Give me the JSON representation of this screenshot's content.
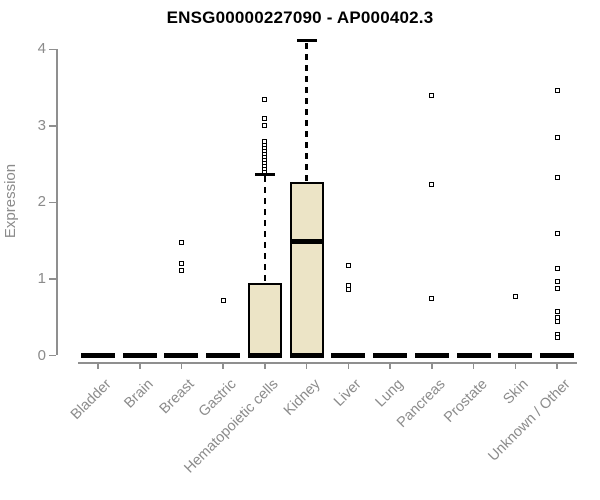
{
  "chart_data": {
    "type": "boxplot",
    "title": "ENSG00000227090 - AP000402.3",
    "ylabel": "Expression",
    "xlabel": "",
    "ylim": [
      0,
      4.2
    ],
    "yticks": [
      0,
      1,
      2,
      3,
      4
    ],
    "grid": false,
    "legend": "none",
    "categories": [
      "Bladder",
      "Brain",
      "Breast",
      "Gastric",
      "Hematopoietic cells",
      "Kidney",
      "Liver",
      "Lung",
      "Pancreas",
      "Prostate",
      "Skin",
      "Unknown / Other"
    ],
    "boxes": [
      {
        "category": "Bladder",
        "q1": 0,
        "median": 0,
        "q3": 0,
        "whisker_low": 0,
        "whisker_high": 0,
        "outliers": []
      },
      {
        "category": "Brain",
        "q1": 0,
        "median": 0,
        "q3": 0,
        "whisker_low": 0,
        "whisker_high": 0,
        "outliers": []
      },
      {
        "category": "Breast",
        "q1": 0,
        "median": 0,
        "q3": 0,
        "whisker_low": 0,
        "whisker_high": 0,
        "outliers": [
          1.47,
          1.2,
          1.11
        ]
      },
      {
        "category": "Gastric",
        "q1": 0,
        "median": 0,
        "q3": 0,
        "whisker_low": 0,
        "whisker_high": 0,
        "outliers": [
          0.72
        ]
      },
      {
        "category": "Hematopoietic cells",
        "q1": 0,
        "median": 0,
        "q3": 0.95,
        "whisker_low": 0,
        "whisker_high": 2.37,
        "outliers": [
          2.4,
          2.44,
          2.48,
          2.52,
          2.56,
          2.6,
          2.64,
          2.68,
          2.72,
          2.76,
          2.8,
          3.0,
          3.1,
          3.34
        ]
      },
      {
        "category": "Kidney",
        "q1": 0,
        "median": 1.49,
        "q3": 2.27,
        "whisker_low": 0,
        "whisker_high": 4.11,
        "outliers": []
      },
      {
        "category": "Liver",
        "q1": 0,
        "median": 0,
        "q3": 0,
        "whisker_low": 0,
        "whisker_high": 0,
        "outliers": [
          1.17,
          0.92,
          0.86
        ]
      },
      {
        "category": "Lung",
        "q1": 0,
        "median": 0,
        "q3": 0,
        "whisker_low": 0,
        "whisker_high": 0,
        "outliers": []
      },
      {
        "category": "Pancreas",
        "q1": 0,
        "median": 0,
        "q3": 0,
        "whisker_low": 0,
        "whisker_high": 0,
        "outliers": [
          3.4,
          2.24,
          0.75
        ]
      },
      {
        "category": "Prostate",
        "q1": 0,
        "median": 0,
        "q3": 0,
        "whisker_low": 0,
        "whisker_high": 0,
        "outliers": []
      },
      {
        "category": "Skin",
        "q1": 0,
        "median": 0,
        "q3": 0,
        "whisker_low": 0,
        "whisker_high": 0,
        "outliers": [
          0.77
        ]
      },
      {
        "category": "Unknown / Other",
        "q1": 0,
        "median": 0,
        "q3": 0,
        "whisker_low": 0,
        "whisker_high": 0,
        "outliers": [
          3.46,
          2.85,
          2.33,
          1.6,
          1.14,
          0.97,
          0.87,
          0.57,
          0.49,
          0.44,
          0.27,
          0.24
        ]
      }
    ],
    "colors": {
      "box_fill": "#ece4c6",
      "box_border": "#000000",
      "axis": "#8f8f8f",
      "tick_label": "#8b8b8b",
      "title": "#000000",
      "background": "#ffffff"
    }
  }
}
